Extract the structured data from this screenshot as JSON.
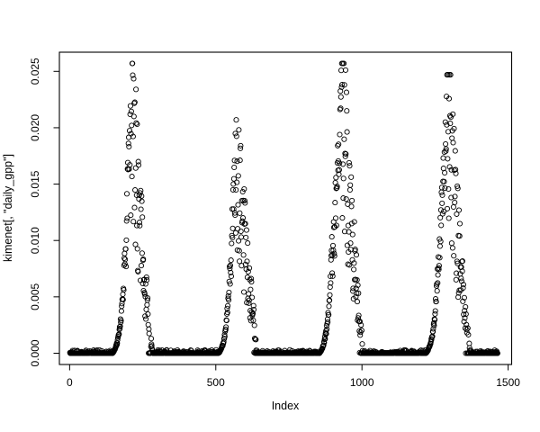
{
  "window": {
    "background": "#ffffff"
  },
  "chart_data": {
    "type": "scatter",
    "title": "",
    "xlabel": "Index",
    "ylabel": "kimenet[, \"daily_gpp\"]",
    "legend": null,
    "grid": false,
    "axes": {
      "x": {
        "label": "Index",
        "range": [
          -35,
          1512
        ],
        "ticks": [
          {
            "value": 0,
            "text": "0"
          },
          {
            "value": 500,
            "text": "500"
          },
          {
            "value": 1000,
            "text": "1000"
          },
          {
            "value": 1500,
            "text": "1500"
          }
        ]
      },
      "y": {
        "label": "kimenet[, \"daily_gpp\"]",
        "range": [
          -0.001,
          0.0267
        ],
        "ticks": [
          {
            "value": 0.0,
            "text": "0.000"
          },
          {
            "value": 0.005,
            "text": "0.005"
          },
          {
            "value": 0.01,
            "text": "0.010"
          },
          {
            "value": 0.015,
            "text": "0.015"
          },
          {
            "value": 0.02,
            "text": "0.020"
          },
          {
            "value": 0.025,
            "text": "0.025"
          }
        ]
      }
    },
    "style": {
      "marker": "open-circle",
      "point_color": "#000000",
      "axis_color": "#000000",
      "text_color": "#000000",
      "background": "#ffffff"
    },
    "series": {
      "name": "daily_gpp",
      "n_points": 1464,
      "seed": 20,
      "baseline_value": 0.0,
      "seasonal_segments": [
        {
          "cycle": 1,
          "flat_until": 147,
          "rise_end": 190,
          "peak_day": 208,
          "peak_value": 0.0257,
          "fall_end": 285,
          "rise_fraction": 0.36
        },
        {
          "cycle": 2,
          "flat_until": 510,
          "rise_end": 548,
          "peak_day": 567,
          "peak_value": 0.0207,
          "fall_end": 648,
          "rise_fraction": 0.36
        },
        {
          "cycle": 3,
          "flat_until": 855,
          "rise_end": 897,
          "peak_day": 930,
          "peak_value": 0.0257,
          "fall_end": 1008,
          "rise_fraction": 0.36
        },
        {
          "cycle": 4,
          "flat_until": 1219,
          "rise_end": 1262,
          "peak_day": 1290,
          "peak_value": 0.0247,
          "fall_end": 1372,
          "rise_fraction": 0.36
        }
      ],
      "zero_runs_x": [
        [
          1,
          147
        ],
        [
          285,
          510
        ],
        [
          648,
          855
        ],
        [
          1008,
          1219
        ],
        [
          1372,
          1464
        ]
      ],
      "peak_summary": [
        {
          "cycle": 1,
          "peak_x": 208,
          "peak_y": 0.0257
        },
        {
          "cycle": 2,
          "peak_x": 567,
          "peak_y": 0.0207
        },
        {
          "cycle": 3,
          "peak_x": 930,
          "peak_y": 0.0257
        },
        {
          "cycle": 4,
          "peak_x": 1290,
          "peak_y": 0.0247
        }
      ]
    }
  }
}
